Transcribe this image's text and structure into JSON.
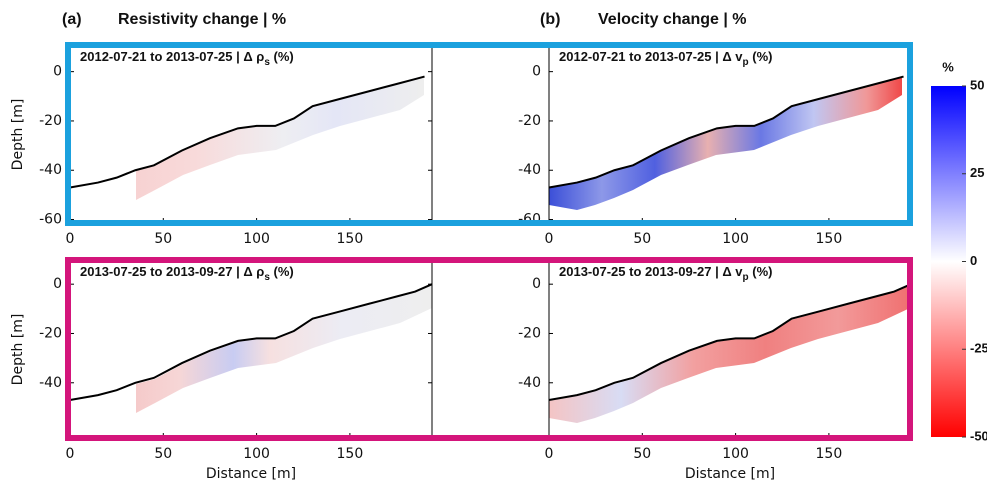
{
  "figure": {
    "panel_labels": [
      "(a)",
      "(b)"
    ],
    "column_titles": [
      "Resistivity change | %",
      "Velocity change | %"
    ]
  },
  "colorbar": {
    "label": "%",
    "lim": [
      -50,
      50
    ],
    "ticks": [
      50,
      25,
      0,
      -25,
      -50
    ],
    "colors": [
      "#ff0000",
      "#ffffff",
      "#0000ff"
    ]
  },
  "chart_data": [
    {
      "type": "line",
      "title": "2012-07-21 to 2013-07-25 | Δ ρ",
      "title_sub": "s",
      "title_end": " (%)",
      "ylabel": "Depth [m]",
      "xlim": [
        0,
        194
      ],
      "ylim": [
        -61,
        10
      ],
      "xticks": [
        0,
        50,
        100,
        150
      ],
      "yticks": [
        0,
        -20,
        -40,
        -60
      ],
      "color": "#000000",
      "x": [
        0,
        15,
        25,
        35,
        45,
        60,
        75,
        90,
        100,
        110,
        120,
        130,
        145,
        160,
        175,
        185,
        190
      ],
      "values": [
        -47,
        -45,
        -43,
        -40,
        -38,
        -32,
        -27,
        -23,
        -22,
        -22,
        -19,
        -14,
        -11,
        -8,
        -5,
        -3,
        -2
      ]
    },
    {
      "type": "line",
      "title": "2012-07-21 to 2013-07-25 | Δ v",
      "title_sub": "p",
      "title_end": " (%)",
      "xlim": [
        0,
        194
      ],
      "ylim": [
        -61,
        10
      ],
      "xticks": [
        0,
        50,
        100,
        150
      ],
      "yticks": [
        0,
        -20,
        -40,
        -60
      ],
      "color": "#000000",
      "x": [
        0,
        15,
        25,
        35,
        45,
        60,
        75,
        90,
        100,
        110,
        120,
        130,
        145,
        160,
        175,
        185,
        190
      ],
      "values": [
        -47,
        -45,
        -43,
        -40,
        -38,
        -32,
        -27,
        -23,
        -22,
        -22,
        -19,
        -14,
        -11,
        -8,
        -5,
        -3,
        -2
      ]
    },
    {
      "type": "line",
      "title": "2013-07-25 to 2013-09-27 | Δ ρ",
      "title_sub": "s",
      "title_end": " (%)",
      "ylabel": "Depth [m]",
      "xlabel": "Distance [m]",
      "xlim": [
        0,
        194
      ],
      "ylim": [
        -62,
        9
      ],
      "xticks": [
        0,
        50,
        100,
        150
      ],
      "yticks": [
        0,
        -20,
        -40
      ],
      "color": "#000000",
      "x": [
        0,
        15,
        25,
        35,
        45,
        60,
        75,
        90,
        100,
        110,
        120,
        130,
        145,
        160,
        175,
        185,
        194
      ],
      "values": [
        -47,
        -45,
        -43,
        -40,
        -38,
        -32,
        -27,
        -23,
        -22,
        -22,
        -19,
        -14,
        -11,
        -8,
        -5,
        -3,
        0
      ]
    },
    {
      "type": "line",
      "title": "2013-07-25 to 2013-09-27 | Δ v",
      "title_sub": "p",
      "title_end": " (%)",
      "xlabel": "Distance [m]",
      "xlim": [
        0,
        194
      ],
      "ylim": [
        -62,
        9
      ],
      "xticks": [
        0,
        50,
        100,
        150
      ],
      "yticks": [
        0,
        -20,
        -40
      ],
      "color": "#000000",
      "x": [
        0,
        15,
        25,
        35,
        45,
        60,
        75,
        90,
        100,
        110,
        120,
        130,
        145,
        160,
        175,
        185,
        194
      ],
      "values": [
        -47,
        -45,
        -43,
        -40,
        -38,
        -32,
        -27,
        -23,
        -22,
        -22,
        -19,
        -14,
        -11,
        -8,
        -5,
        -3,
        0
      ]
    }
  ]
}
